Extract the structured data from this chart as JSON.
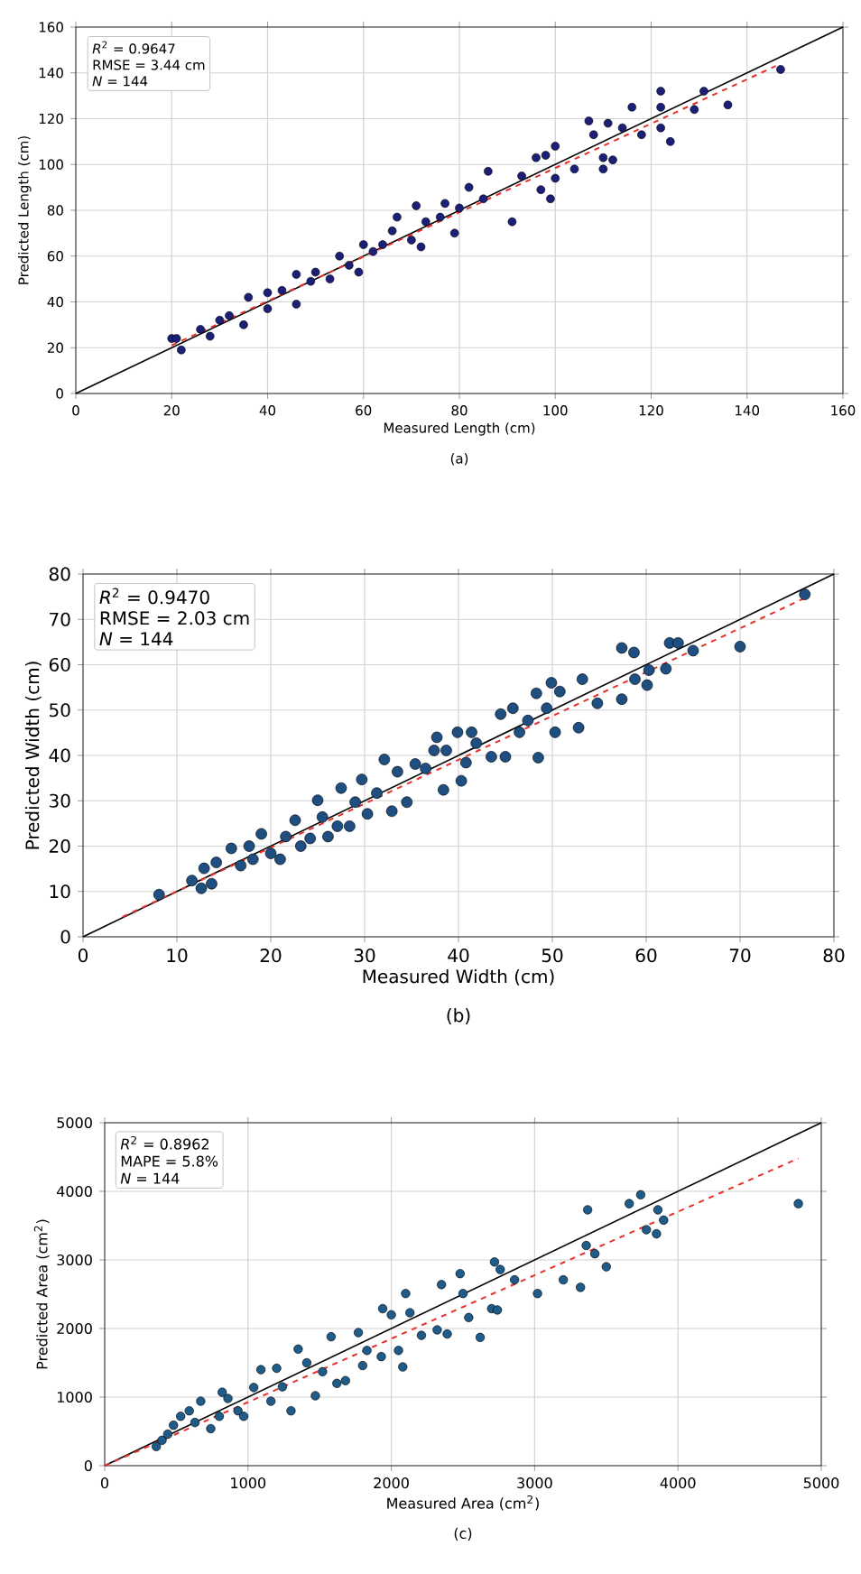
{
  "chart_data": [
    {
      "type": "scatter",
      "xlabel": "Measured Length (cm)",
      "ylabel": "Predicted Length (cm)",
      "xlim": [
        0,
        160
      ],
      "ylim": [
        0,
        160
      ],
      "xticks": [
        0,
        20,
        40,
        60,
        80,
        100,
        120,
        140,
        160
      ],
      "yticks": [
        0,
        20,
        40,
        60,
        80,
        100,
        120,
        140,
        160
      ],
      "grid": true,
      "annotations": [
        "*R*$^{2}$ = 0.9647",
        "RMSE = 3.44 cm",
        "*N* = 144",
        "(a)"
      ],
      "series": [
        {
          "type": "scatter",
          "marker": "circle",
          "color": "#1c1f78",
          "x": [
            20,
            21,
            22,
            26,
            28,
            30,
            32,
            35,
            36,
            40,
            40,
            43,
            46,
            46,
            49,
            50,
            53,
            55,
            57,
            59,
            60,
            62,
            64,
            66,
            67,
            70,
            71,
            72,
            73,
            76,
            77,
            79,
            80,
            82,
            85,
            86,
            91,
            93,
            96,
            97,
            98,
            99,
            100,
            100,
            104,
            107,
            108,
            110,
            110,
            111,
            112,
            114,
            116,
            118,
            122,
            122,
            122,
            124,
            129,
            131,
            136,
            147
          ],
          "values": [
            24,
            24,
            19,
            28,
            25,
            32,
            34,
            30,
            42,
            37,
            44,
            45,
            39,
            52,
            49,
            53,
            50,
            60,
            56,
            53,
            65,
            62,
            65,
            71,
            77,
            67,
            82,
            64,
            75,
            77,
            83,
            70,
            81,
            90,
            85,
            97,
            75,
            95,
            103,
            89,
            104,
            85,
            94,
            108,
            98,
            119,
            113,
            103,
            98,
            118,
            102,
            116,
            125,
            113,
            132,
            125,
            116,
            110,
            124,
            132,
            126,
            141.5
          ]
        },
        {
          "type": "line",
          "marker": "none",
          "line_style": "solid",
          "color": "#000000",
          "x": [
            0,
            160
          ],
          "values": [
            0,
            160
          ]
        },
        {
          "type": "line",
          "marker": "none",
          "line_style": "dashed",
          "color": "#e8302a",
          "x": [
            20,
            146
          ],
          "values": [
            21,
            143
          ]
        }
      ]
    },
    {
      "type": "scatter",
      "xlabel": "Measured Width (cm)",
      "ylabel": "Predicted Width (cm)",
      "xlim": [
        0,
        80
      ],
      "ylim": [
        0,
        80
      ],
      "xticks": [
        0,
        10,
        20,
        30,
        40,
        50,
        60,
        70,
        80
      ],
      "yticks": [
        0,
        10,
        20,
        30,
        40,
        50,
        60,
        70,
        80
      ],
      "grid": true,
      "annotations": [
        "*R*$^{2}$ = 0.9470",
        "RMSE = 2.03 cm",
        "*N* = 144",
        "(b)"
      ],
      "series": [
        {
          "type": "scatter",
          "marker": "circle",
          "color": "#1f4e80",
          "x": [
            8.1,
            11.6,
            12.6,
            12.9,
            13.7,
            14.2,
            15.8,
            16.8,
            17.7,
            18.1,
            19,
            20,
            21,
            21.6,
            22.6,
            23.2,
            24.2,
            25,
            25.5,
            26.1,
            27.1,
            27.5,
            28.4,
            29,
            29.7,
            30.3,
            31.3,
            32.1,
            32.9,
            33.5,
            34.5,
            35.4,
            36.5,
            37.4,
            37.7,
            38.4,
            38.7,
            39.9,
            40.3,
            40.8,
            41.4,
            41.9,
            43.5,
            44.5,
            45,
            45.8,
            46.5,
            47.4,
            48.3,
            48.5,
            49.4,
            49.9,
            50.3,
            50.8,
            52.8,
            53.2,
            54.8,
            57.4,
            57.4,
            58.7,
            58.8,
            60.1,
            60.3,
            62.1,
            62.5,
            63.4,
            65,
            70,
            76.9
          ],
          "values": [
            9.3,
            12.4,
            10.7,
            15.1,
            11.7,
            16.4,
            19.5,
            15.7,
            20,
            17.1,
            22.7,
            18.4,
            17.1,
            22.1,
            25.7,
            20,
            21.7,
            30.1,
            26.4,
            22.1,
            24.4,
            32.8,
            24.4,
            29.7,
            34.7,
            27.1,
            31.7,
            39.1,
            27.7,
            36.4,
            29.7,
            38.1,
            37.1,
            41.1,
            44,
            32.4,
            41.1,
            45.1,
            34.4,
            38.4,
            45.1,
            42.7,
            39.7,
            49.1,
            39.7,
            50.4,
            45.1,
            47.7,
            53.7,
            39.5,
            50.4,
            56,
            45.1,
            54.1,
            46.1,
            56.8,
            51.5,
            63.7,
            52.4,
            62.7,
            56.8,
            55.5,
            58.8,
            59.1,
            64.8,
            64.8,
            63.1,
            64,
            75.5
          ]
        },
        {
          "type": "line",
          "marker": "none",
          "line_style": "solid",
          "color": "#000000",
          "x": [
            0,
            80
          ],
          "values": [
            0,
            80
          ]
        },
        {
          "type": "line",
          "marker": "none",
          "line_style": "dashed",
          "color": "#e8302a",
          "x": [
            4.2,
            76.9
          ],
          "values": [
            4.4,
            74.7
          ]
        }
      ]
    },
    {
      "type": "scatter",
      "xlabel": "Measured Area (cm$^{2}$)",
      "ylabel": "Predicted Area (cm$^{2}$)",
      "xlim": [
        0,
        5000
      ],
      "ylim": [
        0,
        5000
      ],
      "xticks": [
        0,
        1000,
        2000,
        3000,
        4000,
        5000
      ],
      "yticks": [
        0,
        1000,
        2000,
        3000,
        4000,
        5000
      ],
      "grid": true,
      "annotations": [
        "*R*$^{2}$ = 0.8962",
        "MAPE = 5.8%",
        "*N* = 144",
        "(c)"
      ],
      "series": [
        {
          "type": "scatter",
          "marker": "circle",
          "color": "#1f5c8a",
          "x": [
            360,
            400,
            440,
            480,
            530,
            590,
            630,
            670,
            740,
            800,
            820,
            860,
            930,
            970,
            1040,
            1090,
            1160,
            1200,
            1240,
            1300,
            1350,
            1410,
            1470,
            1520,
            1580,
            1620,
            1680,
            1770,
            1800,
            1830,
            1930,
            1940,
            2000,
            2050,
            2080,
            2100,
            2130,
            2210,
            2320,
            2350,
            2390,
            2480,
            2500,
            2540,
            2620,
            2700,
            2720,
            2740,
            2760,
            2860,
            3020,
            3200,
            3320,
            3360,
            3370,
            3420,
            3500,
            3660,
            3740,
            3780,
            3850,
            3860,
            3900,
            4840
          ],
          "values": [
            280,
            370,
            460,
            590,
            720,
            800,
            630,
            940,
            540,
            720,
            1070,
            980,
            800,
            720,
            1140,
            1400,
            940,
            1420,
            1150,
            800,
            1700,
            1500,
            1020,
            1370,
            1880,
            1200,
            1240,
            1940,
            1460,
            1680,
            1590,
            2290,
            2200,
            1680,
            1440,
            2510,
            2230,
            1900,
            1980,
            2640,
            1920,
            2800,
            2510,
            2160,
            1870,
            2290,
            2970,
            2270,
            2860,
            2710,
            2510,
            2710,
            2600,
            3210,
            3730,
            3090,
            2900,
            3820,
            3950,
            3440,
            3380,
            3730,
            3580,
            3820
          ]
        },
        {
          "type": "line",
          "marker": "none",
          "line_style": "solid",
          "color": "#000000",
          "x": [
            0,
            5000
          ],
          "values": [
            0,
            5000
          ]
        },
        {
          "type": "line",
          "marker": "none",
          "line_style": "dashed",
          "color": "#e8302a",
          "x": [
            0,
            4840
          ],
          "values": [
            0,
            4480
          ]
        }
      ]
    }
  ]
}
